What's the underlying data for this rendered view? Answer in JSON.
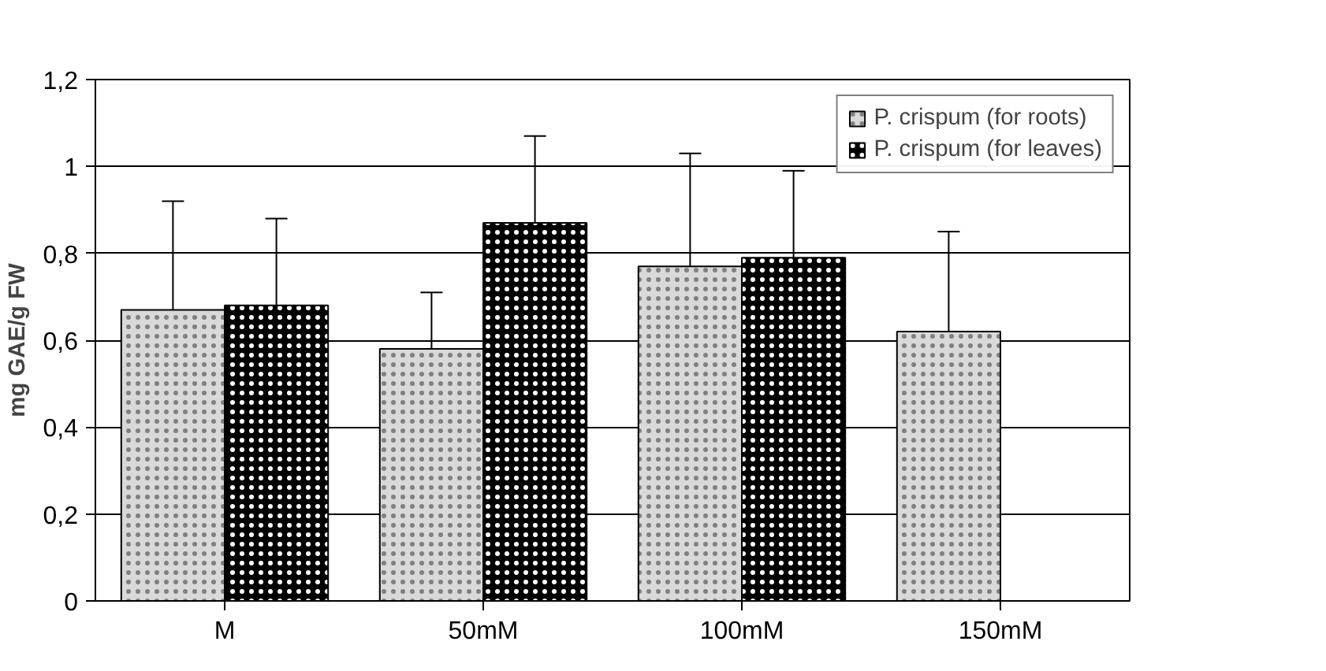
{
  "chart_data": {
    "type": "bar",
    "ylabel": "mg GAE/g FW",
    "categories": [
      "M",
      "50mM",
      "100mM",
      "150mM"
    ],
    "series": [
      {
        "name": "P. crispum (for roots)",
        "color": "#d9d9d9",
        "values": [
          0.67,
          0.58,
          0.77,
          0.62
        ],
        "errors": [
          [
            0.67,
            0.92
          ],
          [
            0.58,
            0.71
          ],
          [
            0.77,
            1.03
          ],
          [
            0.62,
            0.85
          ]
        ]
      },
      {
        "name": "P. crispum (for leaves)",
        "color": "#000000",
        "values": [
          0.68,
          0.87,
          0.79,
          null
        ],
        "errors": [
          [
            0.68,
            0.88
          ],
          [
            0.87,
            1.07
          ],
          [
            0.79,
            0.99
          ],
          null
        ]
      }
    ],
    "ylim": [
      0,
      1.2
    ],
    "yticks": [
      0,
      {
        "value": 0.2,
        "label": "0,2"
      },
      {
        "value": 0.4,
        "label": "0,4"
      },
      {
        "value": 0.6,
        "label": "0,6"
      },
      {
        "value": 0.8,
        "label": "0,8"
      },
      1,
      {
        "value": 1.2,
        "label": "1,2"
      }
    ],
    "grid": "y",
    "legend": "top right"
  }
}
